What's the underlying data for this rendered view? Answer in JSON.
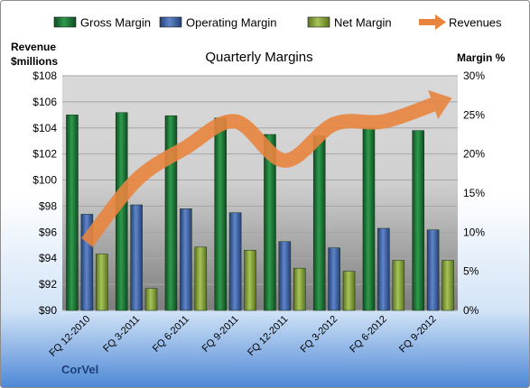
{
  "chart_data": {
    "type": "bar",
    "title": "Quarterly Margins",
    "categories": [
      "FQ 12-2010",
      "FQ 3-2011",
      "FQ 6-2011",
      "FQ 9-2011",
      "FQ 12-2011",
      "FQ 3-2012",
      "FQ 6-2012",
      "FQ 9-2012"
    ],
    "series": [
      {
        "name": "Gross Margin",
        "axis": "right",
        "kind": "bar",
        "color": "#1e7a3a",
        "values": [
          25.0,
          25.3,
          24.9,
          24.6,
          22.5,
          22.3,
          23.3,
          23.0
        ]
      },
      {
        "name": "Operating Margin",
        "axis": "right",
        "kind": "bar",
        "color": "#3f64a8",
        "values": [
          12.3,
          13.5,
          13.0,
          12.5,
          8.8,
          8.0,
          10.5,
          10.3
        ]
      },
      {
        "name": "Net Margin",
        "axis": "right",
        "kind": "bar",
        "color": "#8aa83c",
        "values": [
          7.2,
          2.8,
          8.1,
          7.7,
          5.4,
          5.0,
          6.4,
          6.4
        ]
      },
      {
        "name": "Revenues",
        "axis": "left",
        "kind": "line",
        "color": "#e8843e",
        "values": [
          95.2,
          100.0,
          102.5,
          104.5,
          101.5,
          104.3,
          104.5,
          105.8
        ]
      }
    ],
    "y_left": {
      "label_line1": "Revenue",
      "label_line2": "$millions",
      "min": 90,
      "max": 108,
      "ticks": [
        "$90",
        "$92",
        "$94",
        "$96",
        "$98",
        "$100",
        "$102",
        "$104",
        "$106",
        "$108"
      ]
    },
    "y_right": {
      "label": "Margin %",
      "min": 0,
      "max": 30,
      "ticks": [
        "0%",
        "5%",
        "10%",
        "15%",
        "20%",
        "25%",
        "30%"
      ]
    },
    "legend_position": "top",
    "grid": true
  },
  "footer": {
    "company": "CorVel"
  }
}
